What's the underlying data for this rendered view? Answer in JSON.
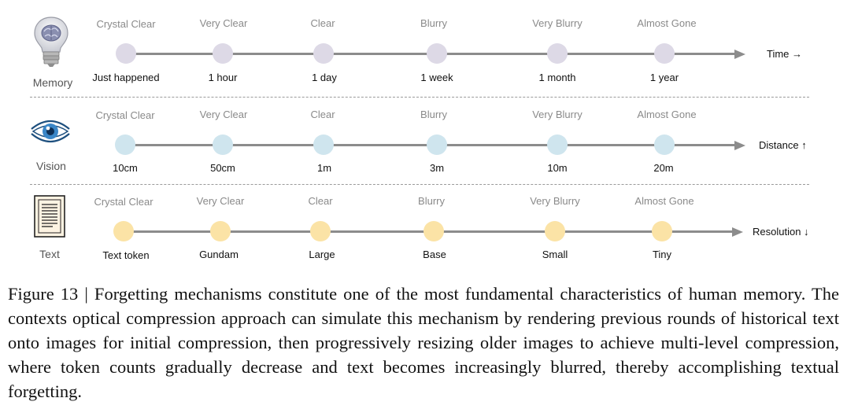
{
  "rows": [
    {
      "key": "memory",
      "label": "Memory",
      "icon": "lightbulb-brain-icon",
      "axis_title": "Time →",
      "dot_color": "#ddd9e6",
      "clarity": [
        "Crystal Clear",
        "Very Clear",
        "Clear",
        "Blurry",
        "Very Blurry",
        "Almost Gone"
      ],
      "ticks": [
        "Just happened",
        "1 hour",
        "1 day",
        "1 week",
        "1 month",
        "1 year"
      ]
    },
    {
      "key": "vision",
      "label": "Vision",
      "icon": "eye-icon",
      "axis_title": "Distance ↑",
      "dot_color": "#cfe5ee",
      "clarity": [
        "Crystal Clear",
        "Very Clear",
        "Clear",
        "Blurry",
        "Very Blurry",
        "Almost Gone"
      ],
      "ticks": [
        "10cm",
        "50cm",
        "1m",
        "3m",
        "10m",
        "20m"
      ]
    },
    {
      "key": "text",
      "label": "Text",
      "icon": "document-icon",
      "axis_title": "Resolution ↓",
      "dot_color": "#fbe3a6",
      "clarity": [
        "Crystal Clear",
        "Very Clear",
        "Clear",
        "Blurry",
        "Very Blurry",
        "Almost Gone"
      ],
      "ticks": [
        "Text token",
        "Gundam",
        "Large",
        "Base",
        "Small",
        "Tiny"
      ]
    }
  ],
  "caption": "Figure 13 | Forgetting mechanisms constitute one of the most fundamental characteristics of human memory. The contexts optical compression approach can simulate this mechanism by rendering previous rounds of historical text onto images for initial compression, then progressively resizing older images to achieve multi-level compression, where token counts gradually decrease and text becomes increasingly blurred, thereby accomplishing textual forgetting."
}
